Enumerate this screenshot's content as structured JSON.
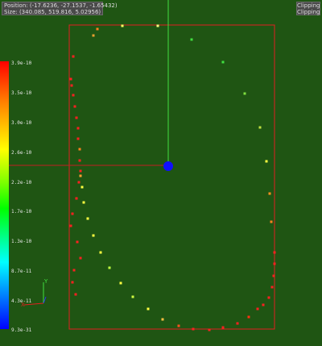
{
  "readout": {
    "position": "Position: (-17.6236, -27.1537, -1.65432)",
    "size": "Size: (340.085, 519.816, 5.02956)"
  },
  "view_mode": {
    "line1": "Clipping",
    "line2": "Clipping"
  },
  "colorbar": {
    "labels": [
      "3.9e-10",
      "3.5e-10",
      "3.0e-10",
      "2.6e-10",
      "2.2e-10",
      "1.7e-10",
      "1.3e-10",
      "8.7e-11",
      "4.3e-11",
      "9.3e-31"
    ],
    "colors": [
      "#ff0000",
      "#ff7f00",
      "#ffff00",
      "#00ff00",
      "#00ffff",
      "#0000ff"
    ]
  },
  "axes": {
    "y_label": "Y",
    "x_label": "X"
  },
  "colors": {
    "background": "#1f5513",
    "frame": "#e02020",
    "vertical_line": "#40e040",
    "horizontal_line": "#c02020",
    "marker": "#1010ff"
  },
  "particles": [
    {
      "c": "#e8a030"
    },
    {
      "c": "#ffff60"
    },
    {
      "c": "#ffff80"
    },
    {
      "c": "#40e040"
    },
    {
      "c": "#40e040"
    },
    {
      "c": "#80e040"
    },
    {
      "c": "#c0e040"
    },
    {
      "c": "#ffff40"
    },
    {
      "c": "#ff9020"
    },
    {
      "c": "#ff8020"
    },
    {
      "c": "#ff2020"
    },
    {
      "c": "#ff2020"
    },
    {
      "c": "#ff2020"
    },
    {
      "c": "#ff2020"
    },
    {
      "c": "#ff2020"
    },
    {
      "c": "#ff2020"
    },
    {
      "c": "#ff2020"
    },
    {
      "c": "#ff3010"
    },
    {
      "c": "#ff2020"
    },
    {
      "c": "#ff2020"
    },
    {
      "c": "#ff2020"
    },
    {
      "c": "#ff2020"
    },
    {
      "c": "#ff5020"
    },
    {
      "c": "#ffc040"
    },
    {
      "c": "#ffff40"
    },
    {
      "c": "#d0ff40"
    },
    {
      "c": "#ffff40"
    },
    {
      "c": "#c0ff40"
    },
    {
      "c": "#ffff40"
    },
    {
      "c": "#ffff40"
    },
    {
      "c": "#ffff40"
    },
    {
      "c": "#ffff40"
    },
    {
      "c": "#ffff40"
    },
    {
      "c": "#ffa030"
    },
    {
      "c": "#ff2020"
    },
    {
      "c": "#ff8020"
    },
    {
      "c": "#ff2020"
    },
    {
      "c": "#ff2020"
    },
    {
      "c": "#ff2020"
    },
    {
      "c": "#ff2020"
    },
    {
      "c": "#ff2020"
    },
    {
      "c": "#ff2020"
    },
    {
      "c": "#ff2020"
    },
    {
      "c": "#ff2020"
    },
    {
      "c": "#ff2020"
    },
    {
      "c": "#ff2020"
    },
    {
      "c": "#ff2020"
    },
    {
      "c": "#ff2020"
    },
    {
      "c": "#ff2020"
    },
    {
      "c": "#ff2020"
    },
    {
      "c": "#ff2020"
    },
    {
      "c": "#ff2020"
    },
    {
      "c": "#ff2020"
    },
    {
      "c": "#ff2020"
    },
    {
      "c": "#ff8020"
    }
  ]
}
